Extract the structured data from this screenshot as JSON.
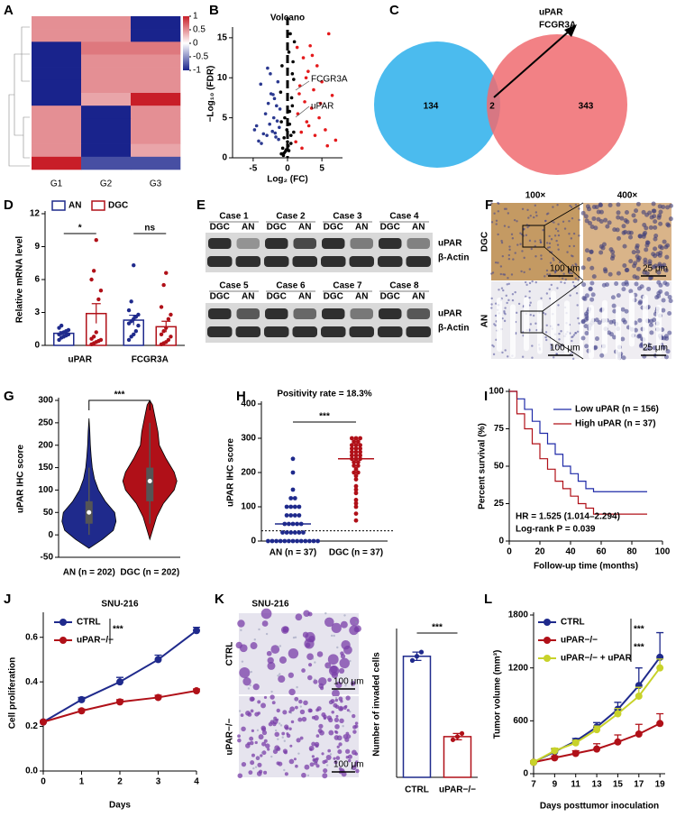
{
  "panel_labels": [
    "A",
    "B",
    "C",
    "D",
    "E",
    "F",
    "G",
    "H",
    "I",
    "J",
    "K",
    "L"
  ],
  "heatmap": {
    "columns": [
      "G1",
      "G2",
      "G3"
    ],
    "rows": [
      [
        0.5,
        0.5,
        -1
      ],
      [
        0.5,
        0.5,
        -1
      ],
      [
        -1,
        0.6,
        0.6
      ],
      [
        -1,
        0.5,
        0.5
      ],
      [
        -1,
        0.5,
        0.5
      ],
      [
        -1,
        0.5,
        0.5
      ],
      [
        -1,
        0.4,
        1
      ],
      [
        0.5,
        -1,
        0.5
      ],
      [
        0.5,
        -1,
        0.5
      ],
      [
        0.5,
        -1,
        0.5
      ],
      [
        0.5,
        -1,
        0.4
      ],
      [
        1,
        -0.8,
        -0.8
      ]
    ],
    "colorbar_ticks": [
      1,
      0.5,
      0,
      -0.5,
      -1
    ]
  },
  "western": {
    "cases": [
      "Case 1",
      "Case 2",
      "Case 3",
      "Case 4",
      "Case 5",
      "Case 6",
      "Case 7",
      "Case 8"
    ],
    "lanes": [
      "DGC",
      "AN"
    ],
    "proteins": [
      "uPAR",
      "β-Actin"
    ]
  },
  "ihc": {
    "magnifications": [
      "100×",
      "400×"
    ],
    "groups": [
      "DGC",
      "AN"
    ],
    "scale_bars": [
      "100 μm",
      "25 μm"
    ]
  },
  "chart_data": [
    {
      "type": "volcano",
      "title": "Volcano",
      "ylabel": "−Log₁₀ (FDR)",
      "xlabel": "Log₂ (FC)",
      "xlim": [
        -8,
        8
      ],
      "xticks": [
        -5,
        0,
        5
      ],
      "ylim": [
        0,
        16
      ],
      "yticks": [
        0,
        5,
        10,
        15
      ],
      "threshold": 0,
      "annotations": [
        "FCGR3A",
        "uPAR"
      ],
      "series": [
        {
          "color": "#2b3990",
          "x": [
            -4.8,
            -4.2,
            -3.9,
            -3.5,
            -3.2,
            -3.0,
            -2.8,
            -2.6,
            -2.4,
            -2.2,
            -2.0,
            -1.9,
            -1.7,
            -1.5,
            -1.4,
            -1.2,
            -1.1,
            -3.8,
            -2.5,
            -1.8,
            -4.5,
            -2.9,
            -1.6,
            -1.3,
            -2.1
          ],
          "values": [
            3.5,
            2.1,
            9.2,
            3.0,
            5.5,
            2.8,
            6.8,
            4.2,
            8.0,
            3.3,
            5.0,
            7.4,
            2.6,
            4.6,
            9.5,
            3.8,
            6.1,
            1.8,
            10.5,
            3.1,
            4.0,
            11.2,
            6.5,
            2.3,
            7.9
          ]
        },
        {
          "color": "#000000",
          "x": [
            -0.9,
            -0.7,
            -0.5,
            -0.3,
            -0.1,
            0.1,
            0.3,
            0.5,
            0.7,
            0.9,
            -0.8,
            -0.4,
            0.2,
            0.6,
            0.8,
            -0.6,
            0.0,
            0.4,
            -0.2,
            0.9,
            -1.0,
            0.7,
            -0.5,
            0.3,
            1.0,
            0.2,
            -0.9,
            0.5
          ],
          "values": [
            0.5,
            1.2,
            2.5,
            0.8,
            3.5,
            1.5,
            4.2,
            2.8,
            6.5,
            9.8,
            11.5,
            5.0,
            13.2,
            7.5,
            12.0,
            0.3,
            2.0,
            15.5,
            1.0,
            3.2,
            8.2,
            10.5,
            0.6,
            5.8,
            14.5,
            0.9,
            4.5,
            1.8
          ]
        },
        {
          "color": "#e41a1c",
          "x": [
            1.2,
            1.5,
            1.8,
            2.0,
            2.3,
            2.5,
            2.8,
            3.0,
            3.3,
            3.5,
            3.8,
            4.0,
            4.3,
            4.6,
            5.0,
            5.5,
            6.0,
            6.5,
            7.0,
            1.4,
            2.1,
            2.7,
            3.6,
            4.8,
            1.7,
            3.1,
            5.8
          ],
          "values": [
            2.0,
            5.5,
            9.0,
            3.2,
            12.5,
            7.0,
            4.5,
            10.8,
            14.0,
            6.2,
            8.5,
            2.8,
            11.5,
            5.0,
            9.5,
            3.5,
            15.5,
            7.8,
            2.2,
            13.8,
            1.2,
            10.0,
            12.8,
            6.8,
            8.0,
            4.0,
            1.5
          ]
        }
      ]
    },
    {
      "type": "venn",
      "values": [
        134,
        2,
        343
      ],
      "annotation": [
        "uPAR",
        "FCGR3A"
      ],
      "colors": [
        "#4bbbee",
        "#f06b70"
      ]
    },
    {
      "type": "bar_dot",
      "ylabel": "Relative mRNA level",
      "categories": [
        "uPAR",
        "FCGR3A"
      ],
      "ylim": [
        0,
        12
      ],
      "yticks": [
        0,
        3,
        6,
        9,
        12
      ],
      "significance": [
        "*",
        "ns"
      ],
      "series": [
        {
          "name": "AN",
          "color": "#1f2a8c",
          "values": [
            1.1,
            2.3
          ],
          "errors": [
            0.15,
            0.45
          ],
          "points": [
            [
              0.5,
              0.7,
              0.8,
              0.9,
              1.0,
              1.0,
              1.1,
              1.2,
              1.3,
              1.4,
              1.6,
              1.8
            ],
            [
              0.5,
              0.8,
              1.0,
              1.3,
              1.8,
              2.0,
              2.2,
              2.4,
              2.6,
              2.8,
              3.2,
              4.0,
              7.3
            ]
          ]
        },
        {
          "name": "DGC",
          "color": "#b01018",
          "values": [
            2.9,
            1.7
          ],
          "errors": [
            0.9,
            0.5
          ],
          "points": [
            [
              0.1,
              0.2,
              0.3,
              0.4,
              0.5,
              0.6,
              0.8,
              1.2,
              4.2,
              5.0,
              6.0,
              6.8,
              9.6
            ],
            [
              0.1,
              0.2,
              0.3,
              0.5,
              0.8,
              1.0,
              1.3,
              1.6,
              2.4,
              2.8,
              3.5,
              5.5,
              6.6
            ]
          ]
        }
      ]
    },
    {
      "type": "violin",
      "ylabel": "uPAR IHC score",
      "ylim": [
        -50,
        300
      ],
      "yticks": [
        -50,
        0,
        50,
        100,
        150,
        200,
        250,
        300
      ],
      "significance": "***",
      "groups": [
        {
          "name": "AN (n = 202)",
          "color": "#1f2a8c",
          "q1": 25,
          "median": 50,
          "q3": 75,
          "whisker_low": 0,
          "whisker_high": 150,
          "density": [
            [
              -30,
              0
            ],
            [
              -10,
              0.5
            ],
            [
              10,
              0.9
            ],
            [
              30,
              1
            ],
            [
              50,
              0.95
            ],
            [
              75,
              0.6
            ],
            [
              100,
              0.35
            ],
            [
              125,
              0.2
            ],
            [
              150,
              0.12
            ],
            [
              175,
              0.08
            ],
            [
              200,
              0.05
            ],
            [
              230,
              0.03
            ],
            [
              260,
              0
            ]
          ]
        },
        {
          "name": "DGC (n = 202)",
          "color": "#b01018",
          "q1": 75,
          "median": 120,
          "q3": 150,
          "whisker_low": 25,
          "whisker_high": 250,
          "density": [
            [
              -10,
              0
            ],
            [
              10,
              0.1
            ],
            [
              40,
              0.25
            ],
            [
              70,
              0.5
            ],
            [
              100,
              0.9
            ],
            [
              120,
              1
            ],
            [
              140,
              0.9
            ],
            [
              170,
              0.6
            ],
            [
              200,
              0.35
            ],
            [
              230,
              0.3
            ],
            [
              260,
              0.2
            ],
            [
              290,
              0.1
            ],
            [
              300,
              0
            ]
          ]
        }
      ]
    },
    {
      "type": "dot_mean",
      "title": "Positivity rate = 18.3%",
      "ylabel": "uPAR IHC score",
      "ylim": [
        0,
        400
      ],
      "yticks": [
        0,
        100,
        200,
        300,
        400
      ],
      "cutoff": 30,
      "significance": "***",
      "groups": [
        {
          "name": "AN (n = 37)",
          "color": "#1f2a8c",
          "mean": 50,
          "points": [
            0,
            0,
            0,
            0,
            0,
            0,
            0,
            0,
            0,
            0,
            0,
            0,
            25,
            25,
            25,
            25,
            25,
            25,
            50,
            50,
            50,
            50,
            50,
            75,
            75,
            75,
            75,
            100,
            100,
            100,
            100,
            125,
            125,
            150,
            200,
            240,
            0
          ]
        },
        {
          "name": "DGC (n = 37)",
          "color": "#b01018",
          "mean": 240,
          "points": [
            60,
            80,
            100,
            110,
            120,
            140,
            150,
            160,
            180,
            190,
            200,
            200,
            210,
            220,
            220,
            230,
            230,
            240,
            240,
            250,
            250,
            250,
            260,
            260,
            260,
            270,
            270,
            270,
            280,
            280,
            280,
            290,
            290,
            300,
            300,
            300,
            240
          ]
        }
      ]
    },
    {
      "type": "survival",
      "ylabel": "Percent survival (%)",
      "xlabel": "Follow-up time (months)",
      "xlim": [
        0,
        100
      ],
      "xticks": [
        0,
        20,
        40,
        60,
        80,
        100
      ],
      "ylim": [
        0,
        100
      ],
      "yticks": [
        0,
        25,
        50,
        75,
        100
      ],
      "annotations": [
        "HR = 1.525 (1.014–2.294)",
        "Log-rank P = 0.039"
      ],
      "series": [
        {
          "name": "Low uPAR (n = 156)",
          "color": "#1f2aa8",
          "x": [
            0,
            5,
            10,
            15,
            20,
            25,
            30,
            35,
            40,
            45,
            50,
            55,
            60,
            70,
            80,
            90
          ],
          "values": [
            100,
            95,
            88,
            80,
            72,
            65,
            58,
            50,
            45,
            40,
            35,
            33,
            33,
            33,
            33,
            33
          ]
        },
        {
          "name": "High uPAR (n = 37)",
          "color": "#b01018",
          "x": [
            0,
            5,
            10,
            15,
            20,
            25,
            30,
            35,
            40,
            45,
            50,
            55,
            60,
            70,
            80,
            90
          ],
          "values": [
            100,
            85,
            75,
            65,
            55,
            48,
            40,
            35,
            30,
            25,
            22,
            18,
            18,
            18,
            18,
            18
          ]
        }
      ]
    },
    {
      "type": "line",
      "title": "SNU-216",
      "ylabel": "Cell proliferation",
      "xlabel": "Days",
      "xlim": [
        0,
        4
      ],
      "xticks": [
        0,
        1,
        2,
        3,
        4
      ],
      "ylim": [
        0,
        0.7
      ],
      "yticks": [
        {
          "value": 0,
          "label": "0.0"
        },
        0.2,
        0.4,
        0.6
      ],
      "significance": [
        "***"
      ],
      "series": [
        {
          "name": "CTRL",
          "color": "#1f2a8c",
          "x": [
            0,
            1,
            2,
            3,
            4
          ],
          "values": [
            0.22,
            0.32,
            0.4,
            0.5,
            0.63
          ],
          "errors": [
            0.005,
            0.01,
            0.02,
            0.02,
            0.015
          ]
        },
        {
          "name": "uPAR−/−",
          "color": "#b01018",
          "x": [
            0,
            1,
            2,
            3,
            4
          ],
          "values": [
            0.22,
            0.27,
            0.31,
            0.33,
            0.36
          ],
          "errors": [
            0.005,
            0.008,
            0.01,
            0.01,
            0.008
          ]
        }
      ]
    },
    {
      "type": "bar_dot",
      "title": "SNU-216",
      "ylabel": "Number of invaded cells",
      "categories": [
        "CTRL",
        "uPAR−/−"
      ],
      "ylim": [
        0,
        700
      ],
      "significance": [
        "***"
      ],
      "scale_bar": "100 μm",
      "series": [
        {
          "color": "#1f2a8c",
          "values": [
            580,
            195
          ],
          "errors": [
            20,
            15
          ],
          "points": [
            [
              560,
              580,
              600
            ],
            [
              180,
              195,
              210
            ]
          ]
        }
      ],
      "colors": [
        "#1f2a8c",
        "#b01018"
      ]
    },
    {
      "type": "line",
      "ylabel": "Tumor volume (mm³)",
      "xlabel": "Days posttumor inoculation",
      "xlim": [
        7,
        19.5
      ],
      "xticks": [
        7,
        9,
        11,
        13,
        15,
        17,
        19
      ],
      "ylim": [
        0,
        1800
      ],
      "yticks": [
        0,
        600,
        1200,
        1800
      ],
      "significance": [
        "***",
        "***"
      ],
      "series": [
        {
          "name": "CTRL",
          "color": "#1f2a8c",
          "x": [
            7,
            9,
            11,
            13,
            15,
            17,
            19
          ],
          "values": [
            130,
            250,
            370,
            530,
            730,
            1000,
            1320
          ],
          "errors": [
            15,
            30,
            30,
            50,
            80,
            200,
            280
          ]
        },
        {
          "name": "uPAR−/−",
          "color": "#b01018",
          "x": [
            7,
            9,
            11,
            13,
            15,
            17,
            19
          ],
          "values": [
            130,
            180,
            230,
            280,
            360,
            450,
            570
          ],
          "errors": [
            15,
            20,
            30,
            60,
            80,
            110,
            110
          ]
        },
        {
          "name": "uPAR−/− + uPAR",
          "color": "#c8d22a",
          "x": [
            7,
            9,
            11,
            13,
            15,
            17,
            19
          ],
          "values": [
            130,
            260,
            350,
            500,
            680,
            880,
            1200
          ],
          "errors": [
            15,
            30,
            30,
            40,
            60,
            100,
            100
          ]
        }
      ]
    }
  ]
}
